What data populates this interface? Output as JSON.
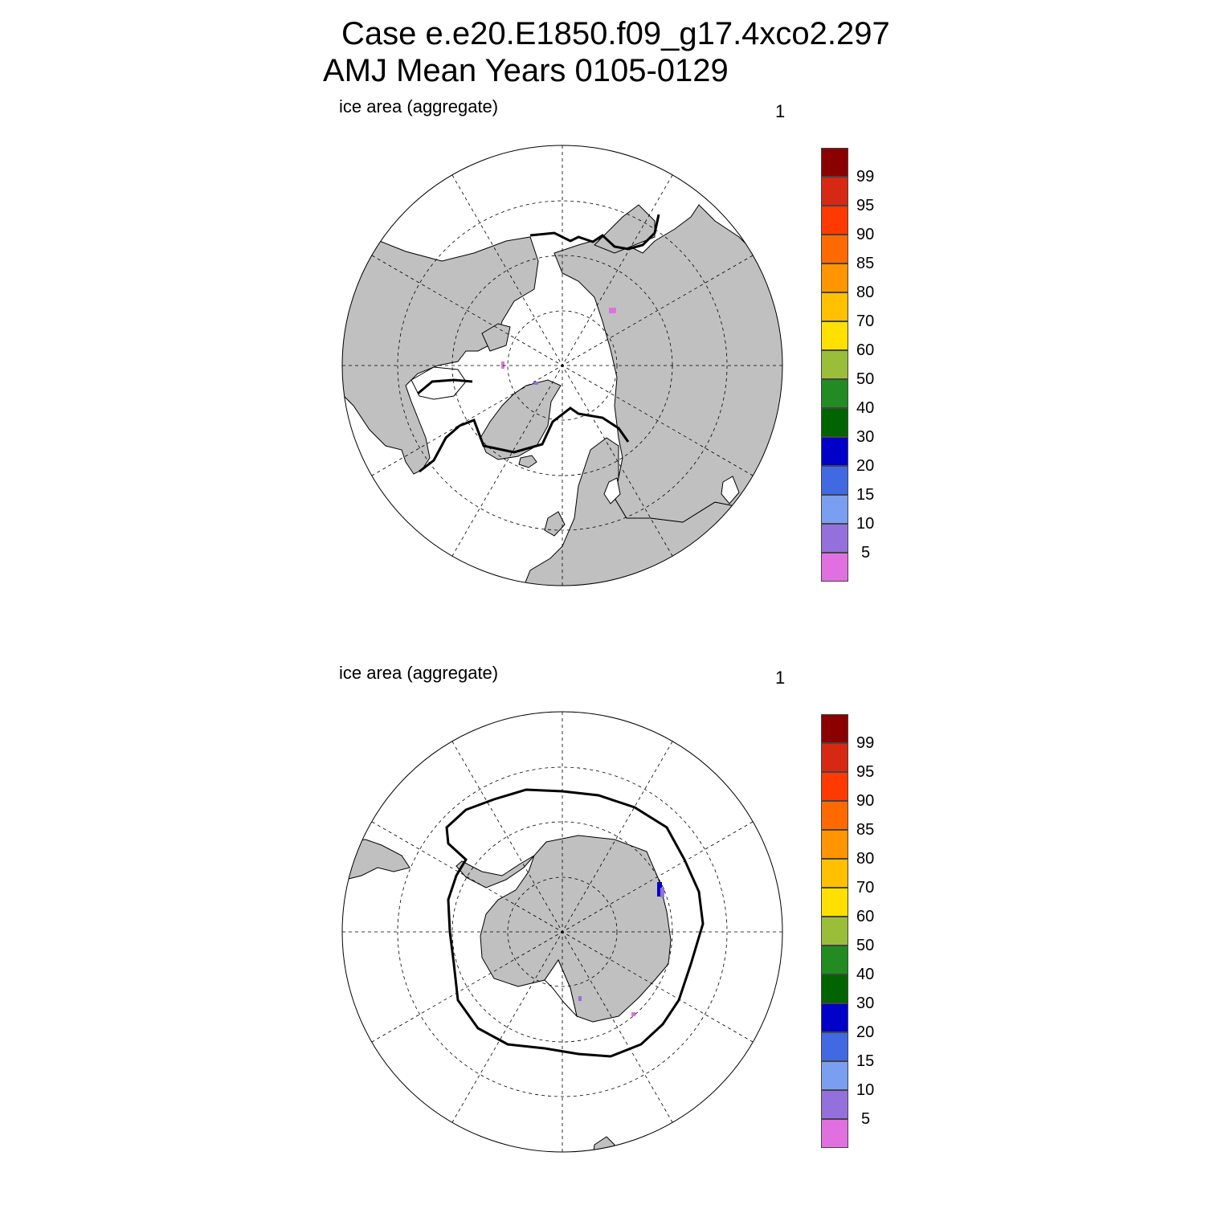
{
  "title": {
    "line1": "Case e.e20.E1850.f09_g17.4xco2.297",
    "line2": "AMJ Mean   Years 0105-0129"
  },
  "panels": [
    {
      "id": "north",
      "left_label": "ice area  (aggregate)",
      "right_label": "1"
    },
    {
      "id": "south",
      "left_label": "ice area  (aggregate)",
      "right_label": "1"
    }
  ],
  "colorbar": {
    "colors": [
      "#e070e0",
      "#9370db",
      "#7b9ff0",
      "#4169e1",
      "#0000c8",
      "#006400",
      "#228b22",
      "#9abd3a",
      "#ffe000",
      "#ffc000",
      "#ff9500",
      "#ff6a00",
      "#ff3a00",
      "#d72814",
      "#8b0000"
    ],
    "labels": [
      "5",
      "10",
      "15",
      "20",
      "30",
      "40",
      "50",
      "60",
      "70",
      "80",
      "85",
      "90",
      "95",
      "99"
    ]
  },
  "map_colors": {
    "land": "#c0c0c0",
    "ocean": "#ffffff",
    "ice_edge": "#000000"
  }
}
